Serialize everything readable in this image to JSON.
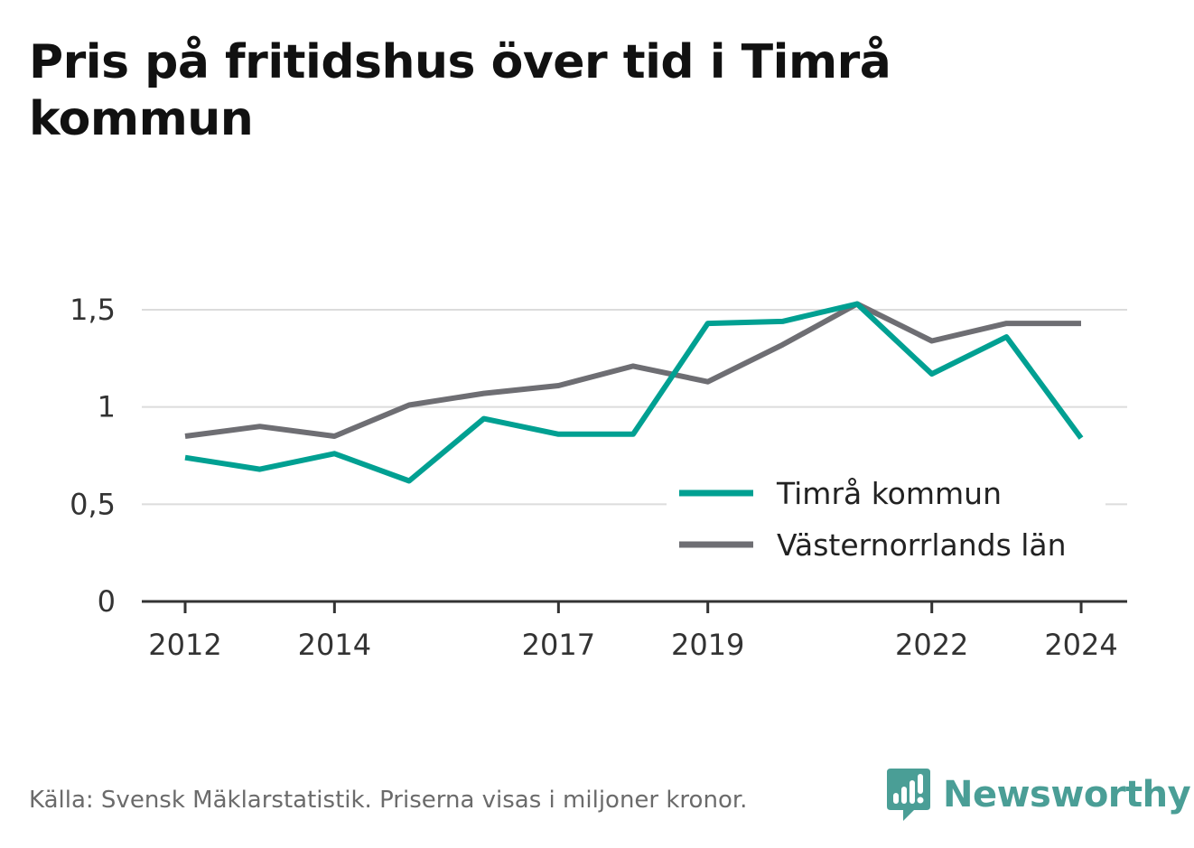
{
  "title": "Pris på fritidshus över tid i Timrå kommun",
  "source": "Källa: Svensk Mäklarstatistik. Priserna visas i miljoner kronor.",
  "brand": {
    "name": "Newsworthy",
    "icon": "newsworthy-logo-icon",
    "color": "#4a9e96"
  },
  "chart_data": {
    "type": "line",
    "x": [
      2012,
      2013,
      2014,
      2015,
      2016,
      2017,
      2018,
      2019,
      2020,
      2021,
      2022,
      2023,
      2024
    ],
    "x_tick_values": [
      2012,
      2014,
      2017,
      2019,
      2022,
      2024
    ],
    "x_tick_labels": [
      "2012",
      "2014",
      "2017",
      "2019",
      "2022",
      "2024"
    ],
    "y_tick_values": [
      0,
      0.5,
      1,
      1.5
    ],
    "y_tick_labels": [
      "0",
      "0,5",
      "1",
      "1,5"
    ],
    "ylim": [
      0,
      1.5
    ],
    "xlim": [
      2011.4,
      2024.6
    ],
    "grid": true,
    "legend_position": "bottom-right",
    "series": [
      {
        "name": "Timrå kommun",
        "color": "#00a092",
        "values": [
          0.74,
          0.68,
          0.76,
          0.62,
          0.94,
          0.86,
          0.86,
          1.43,
          1.44,
          1.53,
          1.17,
          1.36,
          0.84
        ]
      },
      {
        "name": "Västernorrlands län",
        "color": "#6e6e73",
        "values": [
          0.85,
          0.9,
          0.85,
          1.01,
          1.07,
          1.11,
          1.21,
          1.13,
          1.32,
          1.53,
          1.34,
          1.43,
          1.43
        ]
      }
    ]
  }
}
